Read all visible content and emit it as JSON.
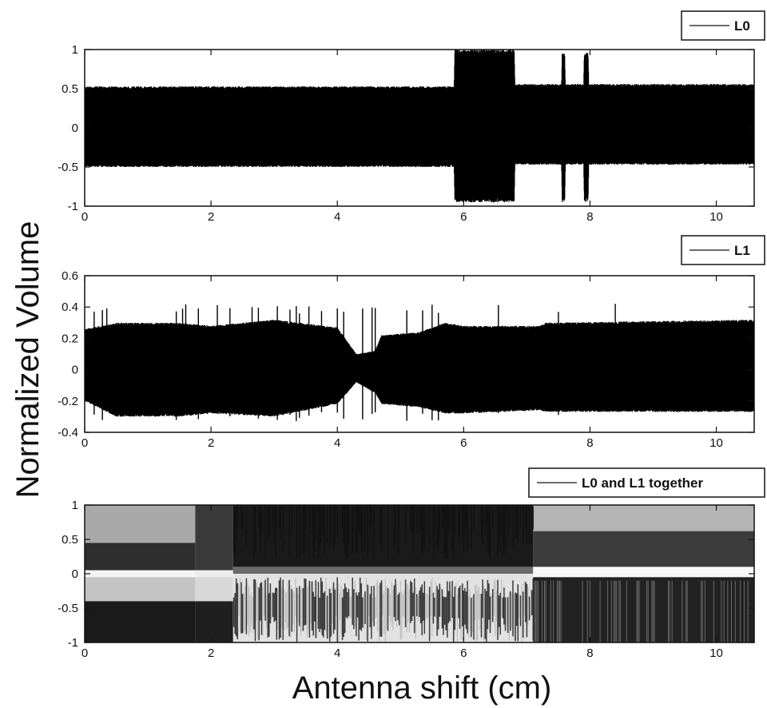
{
  "figure": {
    "ylabel": "Normalized Volume",
    "xlabel": "Antenna shift (cm)"
  },
  "chart_data": [
    {
      "type": "line",
      "legend": [
        "L0"
      ],
      "legend_placement": "top-right",
      "xlim": [
        0,
        10.6
      ],
      "ylim": [
        -1,
        1
      ],
      "xticks": [
        0,
        2,
        4,
        6,
        8,
        10
      ],
      "yticks": [
        1,
        0.5,
        0,
        -0.5,
        -1
      ],
      "xtick_labels": [
        "0",
        "2",
        "4",
        "6",
        "8",
        "10"
      ],
      "ytick_labels": [
        "1",
        "0.5",
        "0",
        "-0.5",
        "-1"
      ],
      "series": [
        {
          "name": "L0",
          "style": "dense oscillation",
          "color": "#000000",
          "envelope_upper": [
            [
              0,
              0.53
            ],
            [
              5.85,
              0.53
            ],
            [
              5.86,
              1.0
            ],
            [
              6.8,
              1.0
            ],
            [
              6.81,
              0.56
            ],
            [
              7.55,
              0.56
            ],
            [
              7.56,
              0.95
            ],
            [
              7.6,
              0.95
            ],
            [
              7.61,
              0.56
            ],
            [
              7.9,
              0.56
            ],
            [
              7.91,
              0.97
            ],
            [
              7.97,
              0.97
            ],
            [
              7.98,
              0.56
            ],
            [
              10.6,
              0.56
            ]
          ],
          "envelope_lower": [
            [
              0,
              -0.5
            ],
            [
              5.85,
              -0.5
            ],
            [
              5.86,
              -0.95
            ],
            [
              6.8,
              -0.95
            ],
            [
              6.81,
              -0.47
            ],
            [
              7.55,
              -0.47
            ],
            [
              7.56,
              -0.95
            ],
            [
              7.6,
              -0.95
            ],
            [
              7.61,
              -0.47
            ],
            [
              7.9,
              -0.47
            ],
            [
              7.91,
              -0.95
            ],
            [
              7.97,
              -0.95
            ],
            [
              7.98,
              -0.47
            ],
            [
              10.6,
              -0.47
            ]
          ]
        }
      ]
    },
    {
      "type": "line",
      "legend": [
        "L1"
      ],
      "legend_placement": "top-right",
      "xlim": [
        0,
        10.6
      ],
      "ylim": [
        -0.4,
        0.6
      ],
      "xticks": [
        0,
        2,
        4,
        6,
        8,
        10
      ],
      "yticks": [
        0.6,
        0.4,
        0.2,
        0,
        -0.2,
        -0.4
      ],
      "xtick_labels": [
        "0",
        "2",
        "4",
        "6",
        "8",
        "10"
      ],
      "ytick_labels": [
        "0.6",
        "0.4",
        "0.2",
        "0",
        "-0.2",
        "-0.4"
      ],
      "series": [
        {
          "name": "L1",
          "style": "dense oscillation",
          "color": "#000000",
          "envelope_upper": [
            [
              0,
              0.26
            ],
            [
              0.5,
              0.3
            ],
            [
              1.5,
              0.3
            ],
            [
              2.0,
              0.28
            ],
            [
              3.0,
              0.32
            ],
            [
              4.0,
              0.27
            ],
            [
              4.3,
              0.1
            ],
            [
              4.6,
              0.12
            ],
            [
              4.7,
              0.22
            ],
            [
              5.3,
              0.24
            ],
            [
              5.7,
              0.3
            ],
            [
              6.0,
              0.28
            ],
            [
              7.2,
              0.28
            ],
            [
              7.3,
              0.3
            ],
            [
              10.6,
              0.32
            ]
          ],
          "envelope_lower": [
            [
              0,
              -0.2
            ],
            [
              0.5,
              -0.3
            ],
            [
              1.5,
              -0.3
            ],
            [
              2.0,
              -0.28
            ],
            [
              3.0,
              -0.3
            ],
            [
              4.0,
              -0.22
            ],
            [
              4.3,
              -0.08
            ],
            [
              4.6,
              -0.15
            ],
            [
              4.7,
              -0.22
            ],
            [
              5.3,
              -0.24
            ],
            [
              5.7,
              -0.28
            ],
            [
              6.0,
              -0.28
            ],
            [
              7.2,
              -0.26
            ],
            [
              7.3,
              -0.27
            ],
            [
              10.6,
              -0.27
            ]
          ],
          "spikes_top": [
            0.15,
            0.28,
            0.35,
            1.45,
            1.55,
            1.6,
            1.8,
            2.1,
            2.3,
            2.65,
            2.75,
            3.05,
            3.25,
            3.35,
            3.4,
            3.55,
            3.75,
            4.0,
            4.1,
            4.4,
            4.55,
            4.6,
            5.1,
            5.35,
            5.5,
            5.6,
            6.55,
            7.5,
            8.4
          ],
          "spike_top_value": 0.42,
          "spike_bottom_value": -0.33
        }
      ]
    },
    {
      "type": "heatmap",
      "legend": [
        "L0 and L1 together"
      ],
      "legend_placement": "top-right",
      "xlim": [
        0,
        10.6
      ],
      "ylim": [
        -1,
        1
      ],
      "xticks": [
        0,
        2,
        4,
        6,
        8,
        10
      ],
      "yticks": [
        1,
        0.5,
        0,
        -0.5,
        -1
      ],
      "xtick_labels": [
        "0",
        "2",
        "4",
        "6",
        "8",
        "10"
      ],
      "ytick_labels": [
        "1",
        "0.5",
        "0",
        "-0.5",
        "-1"
      ],
      "regions": [
        {
          "x": [
            0,
            1.75
          ],
          "y": [
            0.45,
            1
          ],
          "shade": "#a9a9a9"
        },
        {
          "x": [
            0,
            1.75
          ],
          "y": [
            0.05,
            0.45
          ],
          "shade": "#2e2e2e"
        },
        {
          "x": [
            0,
            1.75
          ],
          "y": [
            -0.05,
            0.05
          ],
          "shade": "#f4f4f4"
        },
        {
          "x": [
            0,
            1.75
          ],
          "y": [
            -0.4,
            -0.05
          ],
          "shade": "#c4c4c4"
        },
        {
          "x": [
            0,
            1.75
          ],
          "y": [
            -1,
            -0.4
          ],
          "shade": "#1a1a1a"
        },
        {
          "x": [
            1.75,
            2.35
          ],
          "y": [
            0.05,
            1
          ],
          "shade": "#3a3a3a"
        },
        {
          "x": [
            1.75,
            2.35
          ],
          "y": [
            -0.05,
            0.05
          ],
          "shade": "#ececec"
        },
        {
          "x": [
            1.75,
            2.35
          ],
          "y": [
            -0.4,
            -0.05
          ],
          "shade": "#d8d8d8"
        },
        {
          "x": [
            1.75,
            2.35
          ],
          "y": [
            -1,
            -0.4
          ],
          "shade": "#1f1f1f"
        },
        {
          "x": [
            2.35,
            7.1
          ],
          "y": [
            0.1,
            1
          ],
          "shade": "#1a1a1a"
        },
        {
          "x": [
            2.35,
            7.1
          ],
          "y": [
            0,
            0.1
          ],
          "shade": "#6a6a6a"
        },
        {
          "x": [
            2.35,
            7.1
          ],
          "y": [
            -1,
            0
          ],
          "shade": "#e2e2e2"
        },
        {
          "x": [
            7.1,
            10.6
          ],
          "y": [
            0.62,
            1
          ],
          "shade": "#b4b4b4"
        },
        {
          "x": [
            7.1,
            10.6
          ],
          "y": [
            0.1,
            0.62
          ],
          "shade": "#3c3c3c"
        },
        {
          "x": [
            7.1,
            10.6
          ],
          "y": [
            -0.05,
            0.1
          ],
          "shade": "#f8f8f8"
        },
        {
          "x": [
            7.1,
            10.6
          ],
          "y": [
            -1,
            -0.05
          ],
          "shade": "#222222"
        }
      ]
    }
  ]
}
